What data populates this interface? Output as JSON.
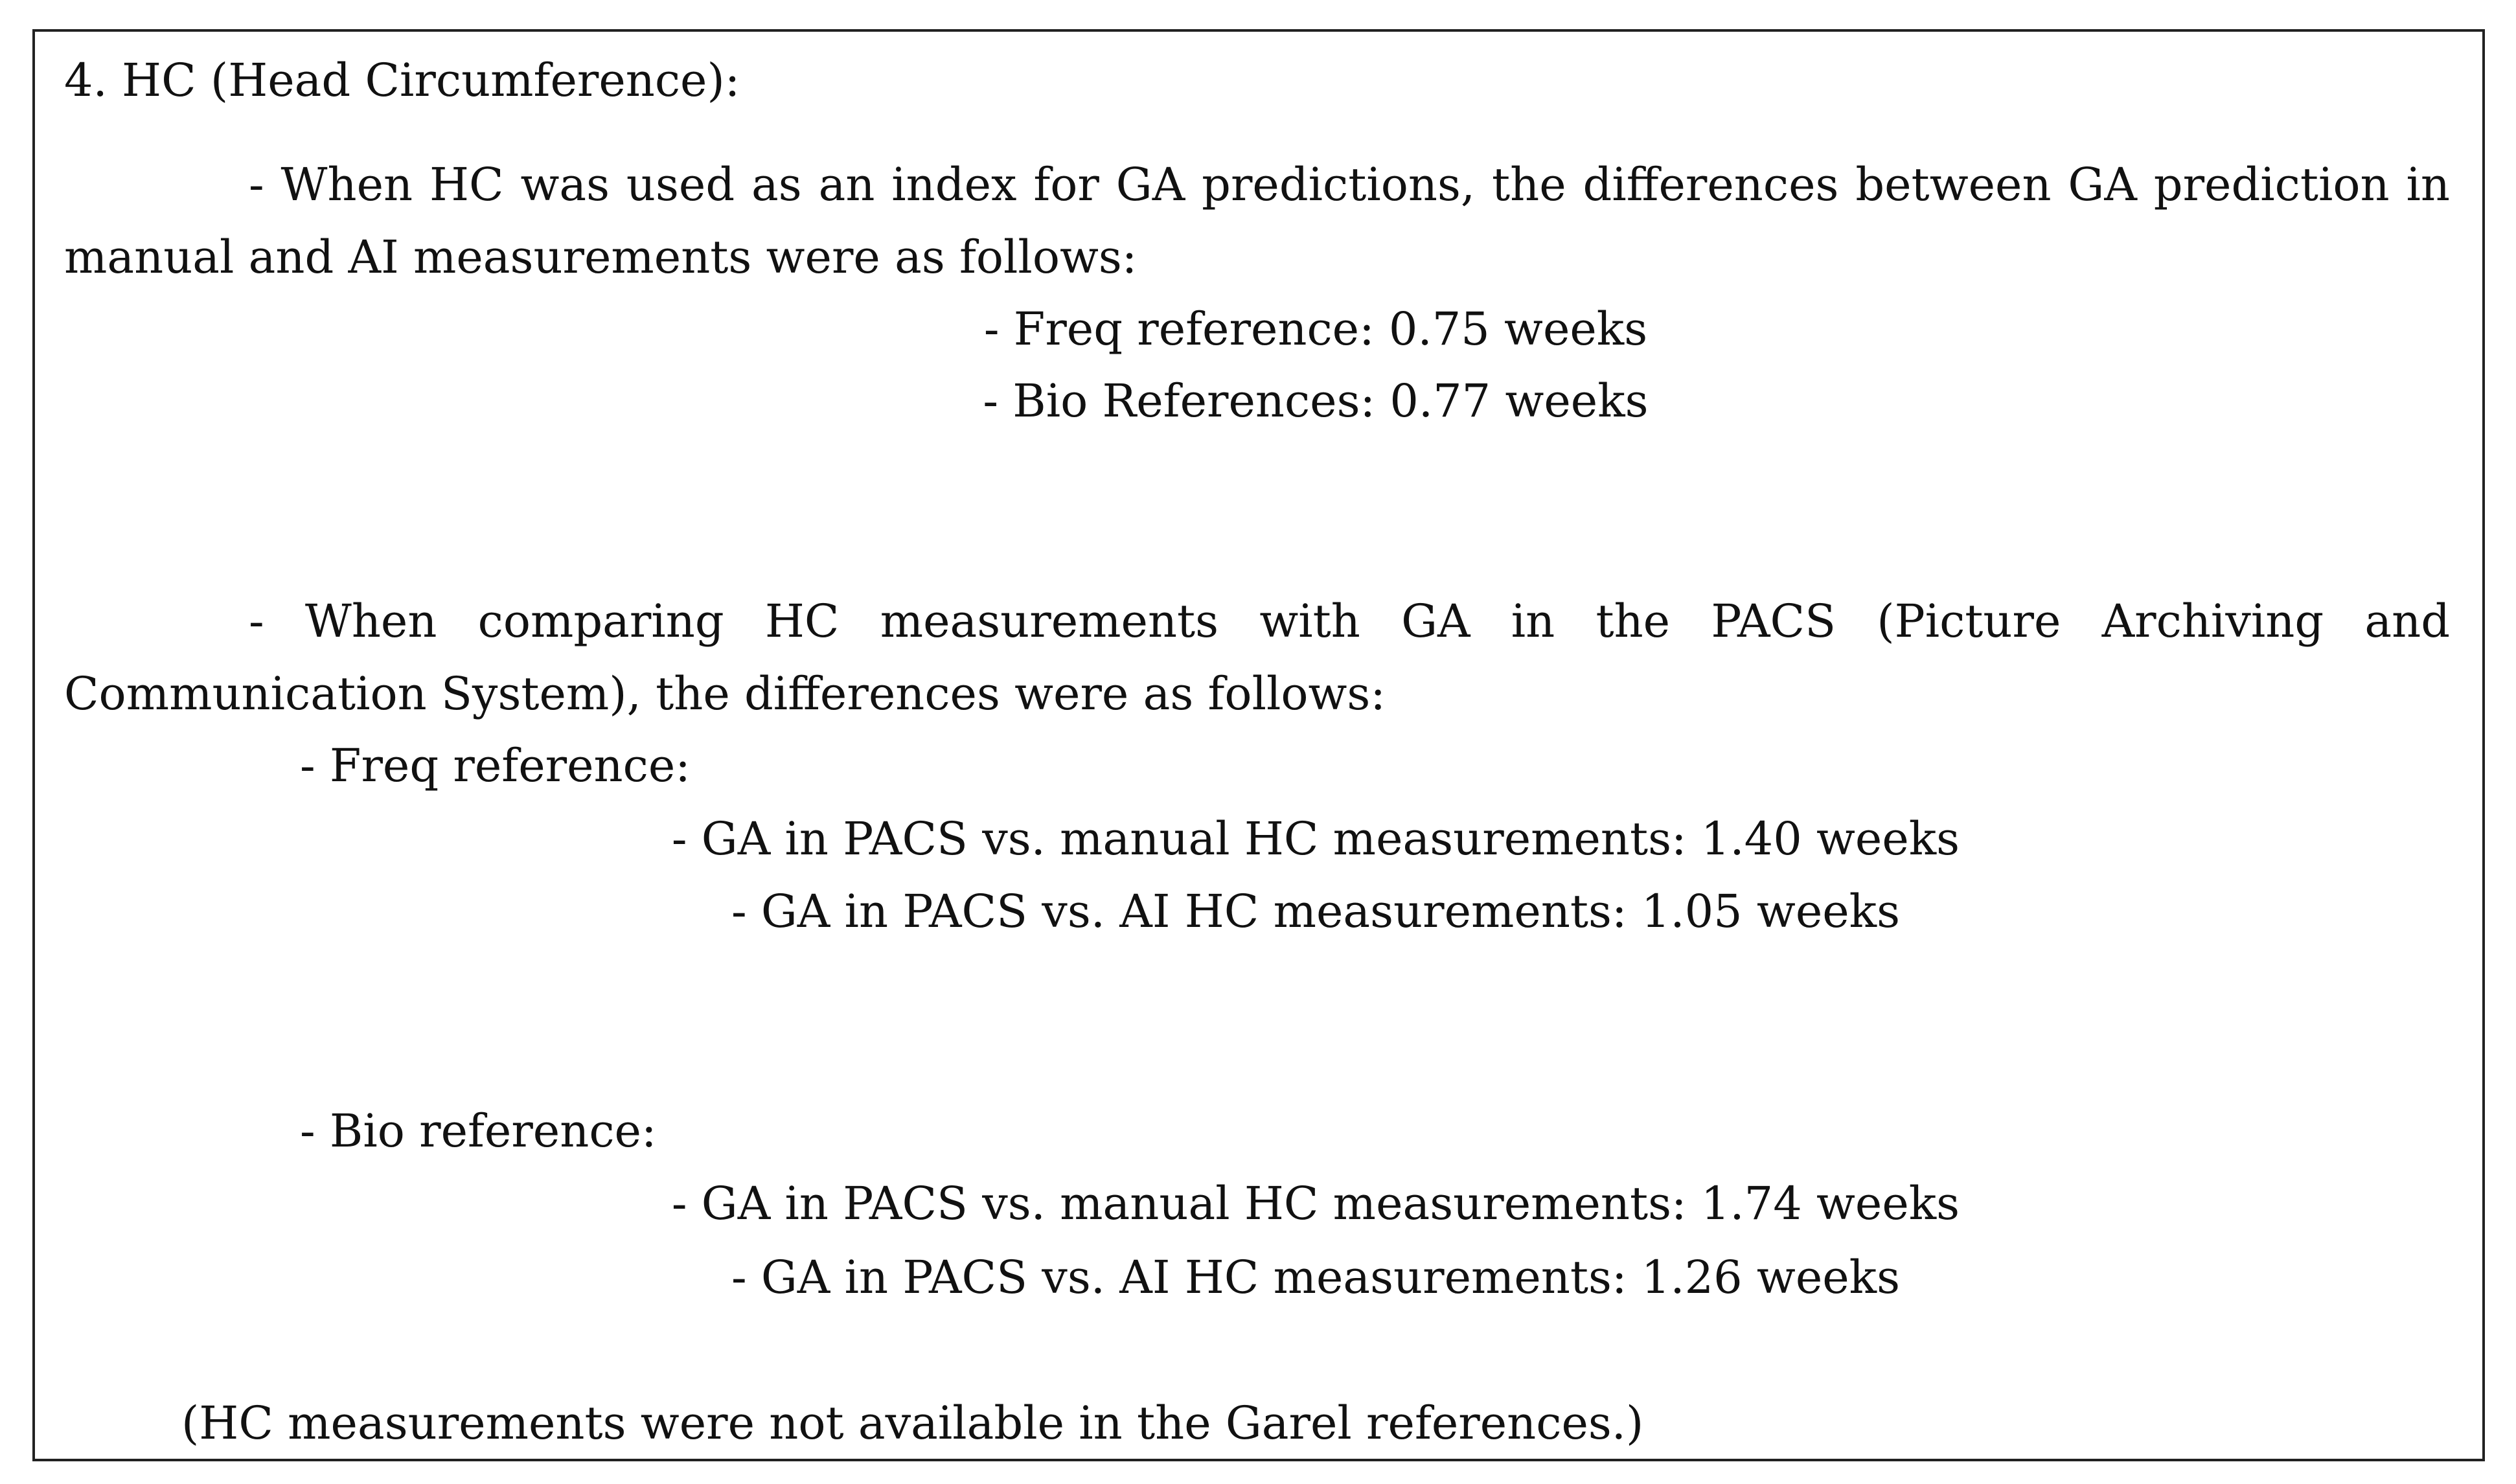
{
  "section": {
    "heading": "4. HC (Head Circumference):",
    "intro_paragraph": "- When HC was used as an index for GA predictions, the differences between GA prediction in manual and AI measurements were as follows:",
    "intro_items": [
      "- Freq reference: 0.75 weeks",
      "- Bio References: 0.77 weeks"
    ],
    "pacs_paragraph": "- When comparing HC measurements with GA in the PACS (Picture Archiving and Communication System), the differences were as follows:",
    "groups": [
      {
        "label": "- Freq reference:",
        "items": [
          "- GA in PACS vs. manual HC measurements: 1.40 weeks",
          "- GA in PACS vs. AI HC measurements: 1.05 weeks"
        ]
      },
      {
        "label": "- Bio reference:",
        "items": [
          "- GA in PACS vs. manual HC measurements: 1.74 weeks",
          "- GA in PACS vs. AI HC measurements: 1.26 weeks"
        ]
      }
    ],
    "note": "(HC measurements were not available in the Garel references.)"
  }
}
